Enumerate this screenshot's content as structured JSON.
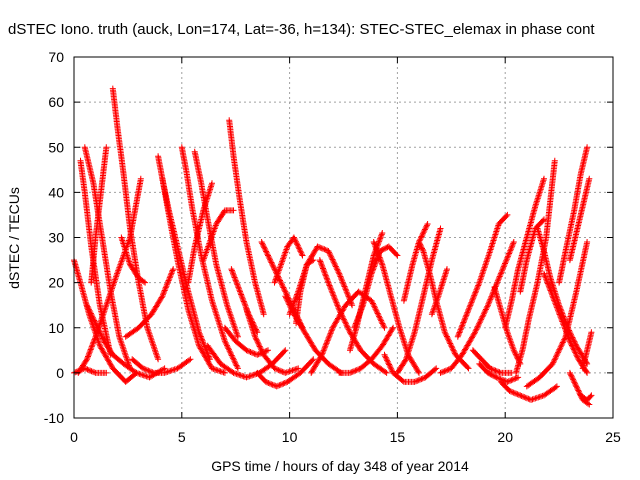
{
  "chart_data": {
    "type": "scatter",
    "title": "dSTEC Iono. truth (auck, Lon=174, Lat=-36, h=134): STEC-STEC_elemax in phase cont",
    "xlabel": "GPS time / hours of day 348 of year 2014",
    "ylabel": "dSTEC  / TECUs",
    "xlim": [
      0,
      25
    ],
    "ylim": [
      -10,
      70
    ],
    "xticks": [
      0,
      5,
      10,
      15,
      20,
      25
    ],
    "yticks": [
      -10,
      0,
      10,
      20,
      30,
      40,
      50,
      60,
      70
    ],
    "grid": true,
    "legend": "none",
    "marker": "plus",
    "color": "#ff0000",
    "series": [
      {
        "x": [
          0.0,
          0.3,
          0.7,
          1.2,
          1.8,
          2.4,
          2.9
        ],
        "y": [
          25,
          20,
          13,
          6,
          1,
          -2,
          0
        ]
      },
      {
        "x": [
          0.2,
          0.6,
          1.0,
          1.5,
          2.0,
          2.6,
          3.1
        ],
        "y": [
          0,
          3,
          8,
          15,
          22,
          30,
          43
        ]
      },
      {
        "x": [
          0.3,
          0.5,
          0.8,
          1.2,
          1.7
        ],
        "y": [
          47,
          40,
          28,
          15,
          4
        ]
      },
      {
        "x": [
          0.5,
          0.9,
          1.3,
          1.7,
          2.1,
          2.6
        ],
        "y": [
          50,
          42,
          30,
          18,
          8,
          1
        ]
      },
      {
        "x": [
          0.6,
          1.0,
          1.4,
          1.8,
          2.3,
          2.9,
          3.5,
          4.2
        ],
        "y": [
          15,
          11,
          7,
          4,
          2,
          0,
          -1,
          1
        ]
      },
      {
        "x": [
          0.0,
          0.5,
          1.0,
          1.5
        ],
        "y": [
          0,
          1,
          0,
          0
        ]
      },
      {
        "x": [
          0.8,
          1.0,
          1.3,
          1.5
        ],
        "y": [
          20,
          30,
          42,
          50
        ]
      },
      {
        "x": [
          1.8,
          2.0,
          2.3,
          2.6,
          3.0,
          3.4,
          3.9
        ],
        "y": [
          63,
          55,
          44,
          32,
          20,
          10,
          3
        ]
      },
      {
        "x": [
          2.2,
          2.6,
          3.0,
          3.3
        ],
        "y": [
          30,
          24,
          21,
          20
        ]
      },
      {
        "x": [
          2.7,
          3.2,
          3.7,
          4.2,
          4.8,
          5.4
        ],
        "y": [
          3,
          1,
          0,
          0,
          1,
          3
        ]
      },
      {
        "x": [
          3.9,
          4.1,
          4.4,
          4.8,
          5.3,
          5.8,
          6.4,
          7.0
        ],
        "y": [
          48,
          43,
          35,
          25,
          14,
          6,
          1,
          0
        ]
      },
      {
        "x": [
          4.1,
          4.4,
          4.8,
          5.3,
          5.8,
          6.3
        ],
        "y": [
          43,
          36,
          28,
          18,
          9,
          3
        ]
      },
      {
        "x": [
          2.4,
          3.0,
          3.6,
          4.1,
          4.6
        ],
        "y": [
          8,
          10,
          13,
          17,
          23
        ]
      },
      {
        "x": [
          5.0,
          5.2,
          5.5,
          5.9,
          6.4,
          7.0,
          7.6
        ],
        "y": [
          50,
          45,
          36,
          26,
          16,
          7,
          1
        ]
      },
      {
        "x": [
          5.6,
          5.9,
          6.2,
          6.6,
          7.1,
          7.6
        ],
        "y": [
          49,
          42,
          34,
          24,
          15,
          8
        ]
      },
      {
        "x": [
          5.3,
          5.6,
          6.0,
          6.4
        ],
        "y": [
          20,
          28,
          36,
          42
        ]
      },
      {
        "x": [
          6.0,
          6.3,
          6.6,
          7.0,
          7.4
        ],
        "y": [
          25,
          29,
          33,
          36,
          36
        ]
      },
      {
        "x": [
          6.2,
          6.8,
          7.4,
          8.0,
          8.6,
          9.2,
          9.8
        ],
        "y": [
          6,
          2,
          0,
          -1,
          0,
          2,
          5
        ]
      },
      {
        "x": [
          7.2,
          7.4,
          7.7,
          8.0,
          8.4,
          8.8
        ],
        "y": [
          56,
          48,
          38,
          29,
          20,
          13
        ]
      },
      {
        "x": [
          7.3,
          7.7,
          8.1,
          8.5
        ],
        "y": [
          23,
          18,
          13,
          9
        ]
      },
      {
        "x": [
          7.0,
          7.5,
          8.0,
          8.5,
          9.0
        ],
        "y": [
          10,
          7,
          5,
          4,
          5
        ]
      },
      {
        "x": [
          8.0,
          8.4,
          8.8,
          9.3,
          9.8,
          10.4
        ],
        "y": [
          14,
          8,
          4,
          1,
          0,
          1
        ]
      },
      {
        "x": [
          8.5,
          8.9,
          9.4,
          9.9,
          10.5,
          11.1
        ],
        "y": [
          0,
          -2,
          -3,
          -2,
          0,
          3
        ]
      },
      {
        "x": [
          8.7,
          9.0,
          9.4,
          9.8,
          10.2,
          10.6
        ],
        "y": [
          29,
          26,
          22,
          18,
          14,
          10
        ]
      },
      {
        "x": [
          9.3,
          9.6,
          9.9,
          10.2,
          10.6
        ],
        "y": [
          20,
          24,
          28,
          30,
          26
        ]
      },
      {
        "x": [
          9.8,
          10.2,
          10.7,
          11.2,
          11.8,
          12.4
        ],
        "y": [
          17,
          13,
          9,
          5,
          2,
          0
        ]
      },
      {
        "x": [
          10.0,
          10.4,
          10.8,
          11.3,
          11.8,
          12.3,
          12.9
        ],
        "y": [
          13,
          18,
          24,
          28,
          27,
          22,
          15
        ]
      },
      {
        "x": [
          10.3,
          10.5,
          10.8,
          11.1
        ],
        "y": [
          11,
          18,
          24,
          25
        ]
      },
      {
        "x": [
          11.4,
          11.8,
          12.3,
          12.8,
          13.3,
          13.9,
          14.5
        ],
        "y": [
          25,
          20,
          14,
          9,
          5,
          2,
          0
        ]
      },
      {
        "x": [
          11.0,
          11.5,
          12.0,
          12.6,
          13.2,
          13.8,
          14.4
        ],
        "y": [
          0,
          4,
          10,
          15,
          18,
          16,
          10
        ]
      },
      {
        "x": [
          12.3,
          12.8,
          13.3,
          13.8,
          14.3,
          14.8
        ],
        "y": [
          0,
          0,
          1,
          3,
          6,
          10
        ]
      },
      {
        "x": [
          12.8,
          13.1,
          13.5,
          13.9,
          14.3
        ],
        "y": [
          5,
          10,
          18,
          26,
          31
        ]
      },
      {
        "x": [
          13.0,
          13.4,
          13.8,
          14.2,
          14.6,
          15.0
        ],
        "y": [
          10,
          15,
          22,
          27,
          28,
          26
        ]
      },
      {
        "x": [
          13.9,
          14.3,
          14.7,
          15.1,
          15.5,
          16.0
        ],
        "y": [
          29,
          24,
          17,
          10,
          4,
          0
        ]
      },
      {
        "x": [
          14.4,
          14.8,
          15.3,
          15.8,
          16.3,
          16.8
        ],
        "y": [
          4,
          0,
          -2,
          -2,
          -1,
          1
        ]
      },
      {
        "x": [
          15.0,
          15.4,
          15.8,
          16.2,
          16.6,
          17.0
        ],
        "y": [
          0,
          3,
          9,
          17,
          25,
          32
        ]
      },
      {
        "x": [
          15.3,
          15.7,
          16.0,
          16.4
        ],
        "y": [
          16,
          24,
          29,
          33
        ]
      },
      {
        "x": [
          16.0,
          16.2,
          16.5,
          16.8,
          17.2,
          17.7,
          18.3
        ],
        "y": [
          29,
          27,
          22,
          16,
          9,
          4,
          1
        ]
      },
      {
        "x": [
          16.6,
          16.9,
          17.1,
          17.3
        ],
        "y": [
          13,
          17,
          20,
          23
        ]
      },
      {
        "x": [
          17.0,
          17.5,
          18.0,
          18.6,
          19.2,
          19.8,
          20.4
        ],
        "y": [
          0,
          1,
          4,
          9,
          15,
          22,
          29
        ]
      },
      {
        "x": [
          17.8,
          18.3,
          18.8,
          19.3,
          19.7,
          20.1
        ],
        "y": [
          8,
          14,
          20,
          27,
          33,
          35
        ]
      },
      {
        "x": [
          18.5,
          18.9,
          19.3,
          19.8,
          20.3
        ],
        "y": [
          5,
          3,
          1,
          0,
          0
        ]
      },
      {
        "x": [
          18.8,
          19.2,
          19.6,
          20.1,
          20.6
        ],
        "y": [
          2,
          0,
          -1,
          -2,
          -1
        ]
      },
      {
        "x": [
          19.5,
          19.8,
          20.1,
          20.4,
          20.7
        ],
        "y": [
          19,
          14,
          9,
          5,
          2
        ]
      },
      {
        "x": [
          19.8,
          20.2,
          20.7,
          21.2,
          21.8,
          22.4
        ],
        "y": [
          -2,
          -4,
          -5,
          -6,
          -5,
          -3
        ]
      },
      {
        "x": [
          20.0,
          20.3,
          20.6,
          21.0,
          21.4,
          21.8
        ],
        "y": [
          10,
          16,
          23,
          30,
          37,
          43
        ]
      },
      {
        "x": [
          20.5,
          20.8,
          21.1,
          21.5,
          21.9,
          22.3
        ],
        "y": [
          0,
          5,
          12,
          20,
          30,
          47
        ]
      },
      {
        "x": [
          20.7,
          21.0,
          21.4,
          21.8
        ],
        "y": [
          18,
          25,
          32,
          34
        ]
      },
      {
        "x": [
          21.5,
          21.8,
          22.1,
          22.5,
          22.9,
          23.3,
          23.8
        ],
        "y": [
          32,
          27,
          21,
          15,
          10,
          6,
          2
        ]
      },
      {
        "x": [
          21.8,
          22.2,
          22.6,
          23.0,
          23.4,
          23.8
        ],
        "y": [
          22,
          17,
          12,
          7,
          3,
          0
        ]
      },
      {
        "x": [
          21.0,
          21.6,
          22.2,
          22.8,
          23.3,
          23.8
        ],
        "y": [
          -3,
          -1,
          2,
          8,
          18,
          29
        ]
      },
      {
        "x": [
          22.5,
          22.8,
          23.2,
          23.5,
          23.8
        ],
        "y": [
          20,
          27,
          36,
          44,
          50
        ]
      },
      {
        "x": [
          23.0,
          23.3,
          23.6,
          23.9
        ],
        "y": [
          25,
          31,
          37,
          43
        ]
      },
      {
        "x": [
          23.0,
          23.3,
          23.6,
          23.9
        ],
        "y": [
          0,
          -3,
          -6,
          -7
        ]
      },
      {
        "x": [
          23.6,
          23.8,
          24.0
        ],
        "y": [
          1,
          5,
          9
        ]
      },
      {
        "x": [
          23.5,
          23.8,
          24.0
        ],
        "y": [
          -5,
          -6,
          -5
        ]
      }
    ]
  }
}
